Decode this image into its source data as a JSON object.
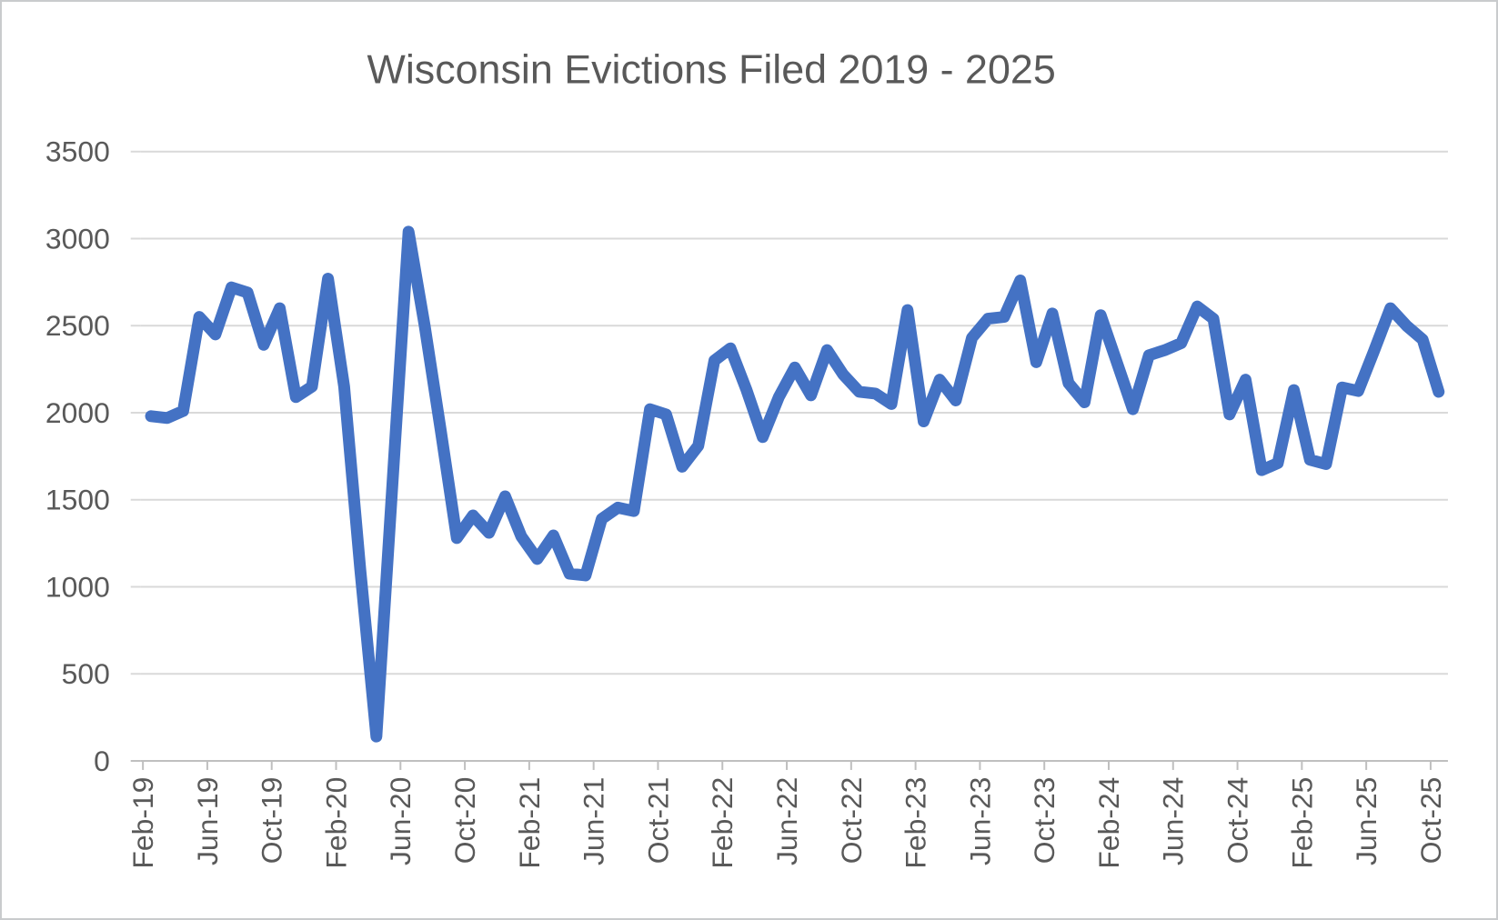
{
  "chart_data": {
    "type": "line",
    "title": "Wisconsin Evictions Filed 2019 - 2025",
    "series_name": "Evictions Filed",
    "x": [
      "Feb-19",
      "Mar-19",
      "Apr-19",
      "May-19",
      "Jun-19",
      "Jul-19",
      "Aug-19",
      "Sep-19",
      "Oct-19",
      "Nov-19",
      "Dec-19",
      "Jan-20",
      "Feb-20",
      "Mar-20",
      "Apr-20",
      "May-20",
      "Jun-20",
      "Jul-20",
      "Aug-20",
      "Sep-20",
      "Oct-20",
      "Nov-20",
      "Dec-20",
      "Jan-21",
      "Feb-21",
      "Mar-21",
      "Apr-21",
      "May-21",
      "Jun-21",
      "Jul-21",
      "Aug-21",
      "Sep-21",
      "Oct-21",
      "Nov-21",
      "Dec-21",
      "Jan-22",
      "Feb-22",
      "Mar-22",
      "Apr-22",
      "May-22",
      "Jun-22",
      "Jul-22",
      "Aug-22",
      "Sep-22",
      "Oct-22",
      "Nov-22",
      "Dec-22",
      "Jan-23",
      "Feb-23",
      "Mar-23",
      "Apr-23",
      "May-23",
      "Jun-23",
      "Jul-23",
      "Aug-23",
      "Sep-23",
      "Oct-23",
      "Nov-23",
      "Dec-23",
      "Jan-24",
      "Feb-24",
      "Mar-24",
      "Apr-24",
      "May-24",
      "Jun-24",
      "Jul-24",
      "Aug-24",
      "Sep-24",
      "Oct-24",
      "Nov-24",
      "Dec-24",
      "Jan-25",
      "Feb-25",
      "Mar-25",
      "Apr-25",
      "May-25",
      "Jun-25",
      "Jul-25",
      "Aug-25",
      "Sep-25",
      "Oct-25"
    ],
    "values": [
      1980,
      1970,
      2010,
      2550,
      2450,
      2720,
      2690,
      2390,
      2600,
      2090,
      2150,
      2770,
      2150,
      1100,
      140,
      1590,
      3040,
      2500,
      1900,
      1280,
      1410,
      1310,
      1520,
      1290,
      1160,
      1295,
      1075,
      1065,
      1390,
      1455,
      1435,
      2020,
      1990,
      1690,
      1810,
      2300,
      2370,
      2130,
      1860,
      2090,
      2260,
      2100,
      2360,
      2220,
      2120,
      2110,
      2050,
      2590,
      1950,
      2190,
      2070,
      2430,
      2540,
      2550,
      2760,
      2290,
      2570,
      2170,
      2060,
      2560,
      2290,
      2020,
      2330,
      2360,
      2400,
      2610,
      2540,
      1990,
      2190,
      1670,
      1710,
      2130,
      1730,
      1705,
      2145,
      2125,
      2360,
      2600,
      2500,
      2420,
      2120
    ],
    "x_tick_labels": [
      "Feb-19",
      "Jun-19",
      "Oct-19",
      "Feb-20",
      "Jun-20",
      "Oct-20",
      "Feb-21",
      "Jun-21",
      "Oct-21",
      "Feb-22",
      "Jun-22",
      "Oct-22",
      "Feb-23",
      "Jun-23",
      "Oct-23",
      "Feb-24",
      "Jun-24",
      "Oct-24",
      "Feb-25",
      "Jun-25",
      "Oct-25"
    ],
    "y_ticks": [
      0,
      500,
      1000,
      1500,
      2000,
      2500,
      3000,
      3500
    ],
    "ylim": [
      0,
      3500
    ],
    "grid": "horizontal",
    "legend": "none",
    "colors": {
      "line": "#4472C4",
      "gridline": "#D9D9D9",
      "axis": "#BFBFBF",
      "text": "#595959"
    }
  }
}
